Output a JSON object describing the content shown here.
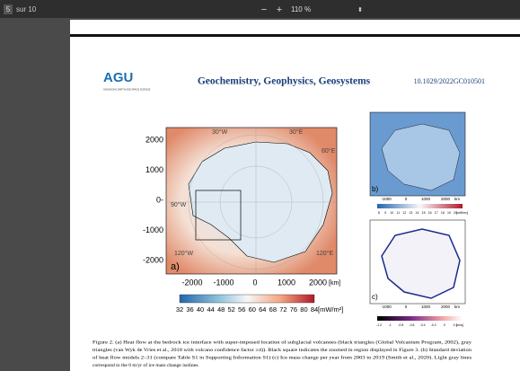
{
  "toolbar": {
    "page": "5",
    "of": "sur 10",
    "minus": "−",
    "plus": "+",
    "zoom": "110 %"
  },
  "header": {
    "logo": "AGU",
    "logo_sub": "ADVANCING EARTH AND SPACE SCIENCE",
    "journal": "Geochemistry, Geophysics, Geosystems",
    "doi": "10.1029/2022GC010501"
  },
  "figure": {
    "panel_a": {
      "label": "a)",
      "yticks": [
        "2000",
        "1000",
        "0-",
        "-1000",
        "-2000"
      ],
      "xticks": [
        "-2000",
        "-1000",
        "0",
        "1000",
        "2000"
      ],
      "xunit": "[km]",
      "meridians": [
        "30°W",
        "30°E",
        "60°E",
        "90°W",
        "120°W",
        "120°E"
      ],
      "colorbar": [
        "32",
        "36",
        "40",
        "44",
        "48",
        "52",
        "56",
        "60",
        "64",
        "68",
        "72",
        "76",
        "80",
        "84"
      ],
      "colorbar_unit": "[mW/m²]"
    },
    "panel_b": {
      "label": "b)",
      "xticks": [
        "-1000",
        "0",
        "1000",
        "2000"
      ],
      "xunit": "km",
      "colorbar": [
        "8",
        "9",
        "10",
        "11",
        "12",
        "13",
        "14",
        "15",
        "16",
        "17",
        "18",
        "19",
        "20"
      ],
      "colorbar_unit": "[mW/m²]"
    },
    "panel_c": {
      "label": "c)",
      "xticks": [
        "-1000",
        "0",
        "1000",
        "2000"
      ],
      "xunit": "km",
      "colorbar": [
        "-1.2",
        "-1",
        "-0.8",
        "-0.6",
        "-0.4",
        "-0.2",
        "0",
        "0.1"
      ],
      "colorbar_unit": "[m/a]"
    },
    "caption": [
      "Figure 2. (a) Heat flow at the bedrock ice interface with super-imposed location of subglacial volcanoes (black triangles (Global Volcanism Program, 2002), gray",
      "triangles (van Wyk de Vries et al., 2018 with volcano confidence factor ≥4)). Black square indicates the zoomed in region displayed in Figure 3. (b) Standard deviation",
      "of heat flow models 2–31 (compare Table S1 in Supporting Information S1) (c) Ice mass change per year from 2003 to 2019 (Smith et al., 2020). Light gray lines",
      "correspond to the 0 m/yr of ice mass change isolines."
    ]
  }
}
